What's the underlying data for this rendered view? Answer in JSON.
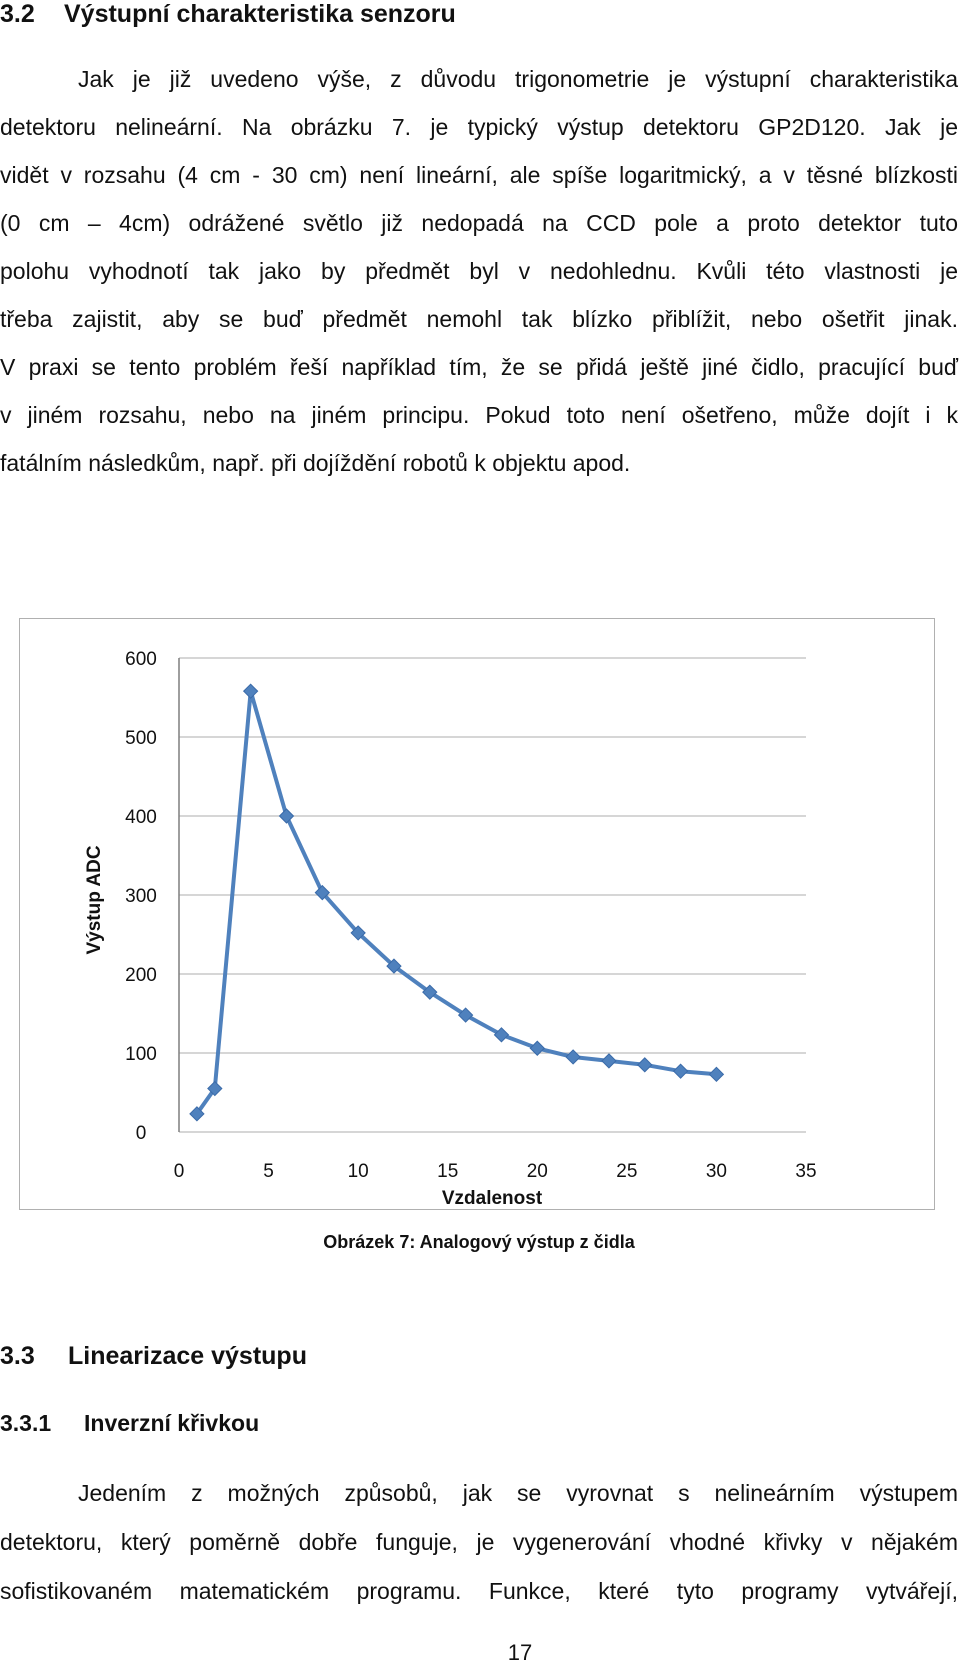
{
  "section_3_2": {
    "number": "3.2",
    "title": "Výstupní charakteristika senzoru",
    "lines": [
      "Jak je již uvedeno výše, z důvodu trigonometrie je výstupní charakteristika",
      "detektoru nelineární. Na obrázku 7. je typický výstup detektoru GP2D120. Jak je",
      "vidět v rozsahu (4 cm - 30 cm) není lineární, ale spíše logaritmický, a v těsné blízkosti",
      "(0 cm – 4cm) odrážené světlo již nedopadá na CCD pole a proto detektor tuto",
      "polohu vyhodnotí tak jako by předmět byl v nedohlednu. Kvůli této vlastnosti je",
      "třeba zajistit, aby se buď předmět nemohl tak blízko přiblížit, nebo ošetřit jinak.",
      "V praxi se tento problém řeší například tím, že se přidá ještě jiné čidlo, pracující buď",
      "v jiném rozsahu, nebo na jiném principu. Pokud toto není ošetřeno, může dojít i k",
      "fatálním následkům, např. při dojíždění robotů k objektu apod."
    ]
  },
  "figure": {
    "caption": "Obrázek 7: Analogový výstup z čidla"
  },
  "chart_data": {
    "type": "line",
    "xlabel": "Vzdalenost",
    "ylabel": "Výstup ADC",
    "xlim": [
      0,
      35
    ],
    "ylim": [
      0,
      600
    ],
    "x_ticks": [
      "0",
      "5",
      "10",
      "15",
      "20",
      "25",
      "30",
      "35"
    ],
    "y_ticks": [
      "0",
      "100",
      "200",
      "300",
      "400",
      "500",
      "600"
    ],
    "grid": "horizontal",
    "legend": "none",
    "marker": "diamond",
    "color": "#4f81bd",
    "series": [
      {
        "x": [
          1,
          2,
          4,
          6,
          8,
          10,
          12,
          14,
          16,
          18,
          20,
          22,
          24,
          26,
          28,
          30
        ],
        "y": [
          23,
          55,
          558,
          400,
          303,
          252,
          210,
          177,
          148,
          123,
          106,
          95,
          90,
          85,
          77,
          73
        ]
      }
    ]
  },
  "section_3_3": {
    "number": "3.3",
    "title": "Linearizace výstupu"
  },
  "section_3_3_1": {
    "number": "3.3.1",
    "title": "Inverzní křivkou",
    "lines": [
      "Jedením z možných způsobů, jak se vyrovnat s nelineárním výstupem",
      "detektoru, který poměrně dobře funguje, je vygenerování vhodné křivky v nějakém",
      "sofistikovaném matematickém programu. Funkce, které tyto programy vytvářejí,"
    ]
  },
  "page_number": "17"
}
